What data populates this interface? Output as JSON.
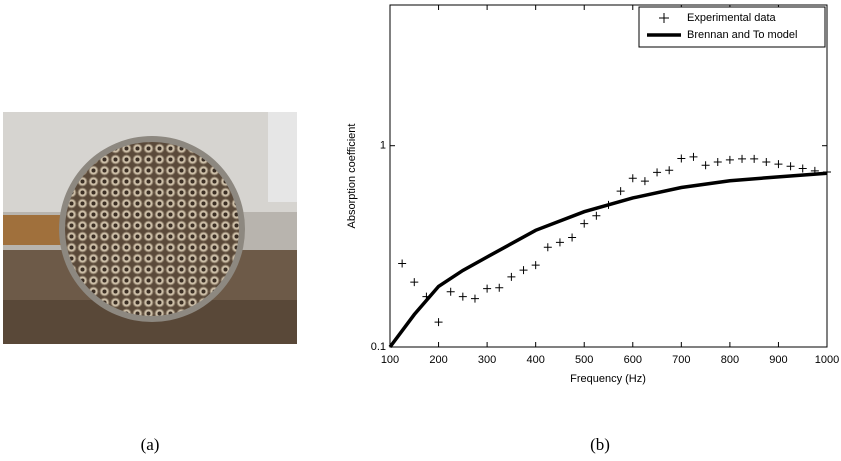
{
  "figure": {
    "captions": [
      "(a)",
      "(b)"
    ]
  },
  "chart_data": {
    "type": "line",
    "xlabel": "Frequency (Hz)",
    "ylabel": "Absorption coefficient",
    "xlim": [
      100,
      1000
    ],
    "xticks": [
      100,
      200,
      300,
      400,
      500,
      600,
      700,
      800,
      900,
      1000
    ],
    "ylim": [
      0.1,
      5
    ],
    "yticks": [
      0.1,
      1
    ],
    "log_y": true,
    "grid": false,
    "legend": "upper right",
    "series": [
      {
        "name": "Experimental data",
        "color": "#000000",
        "marker": "+",
        "x": [
          125,
          150,
          175,
          200,
          225,
          250,
          275,
          300,
          325,
          350,
          375,
          400,
          425,
          450,
          475,
          500,
          525,
          550,
          575,
          600,
          625,
          650,
          675,
          700,
          725,
          750,
          775,
          800,
          825,
          850,
          875,
          900,
          925,
          950,
          975,
          1000
        ],
        "values": [
          0.26,
          0.21,
          0.178,
          0.133,
          0.188,
          0.178,
          0.174,
          0.195,
          0.197,
          0.223,
          0.241,
          0.255,
          0.313,
          0.331,
          0.35,
          0.41,
          0.449,
          0.508,
          0.595,
          0.689,
          0.667,
          0.737,
          0.755,
          0.864,
          0.88,
          0.8,
          0.83,
          0.85,
          0.86,
          0.86,
          0.83,
          0.81,
          0.79,
          0.77,
          0.75,
          0.74
        ]
      },
      {
        "name": "Brennan and To model",
        "color": "#000000",
        "marker": "none",
        "x": [
          100,
          150,
          200,
          250,
          300,
          400,
          500,
          600,
          700,
          800,
          900,
          1000
        ],
        "values": [
          0.1,
          0.145,
          0.2,
          0.24,
          0.28,
          0.38,
          0.47,
          0.55,
          0.62,
          0.67,
          0.7,
          0.73
        ]
      }
    ]
  }
}
